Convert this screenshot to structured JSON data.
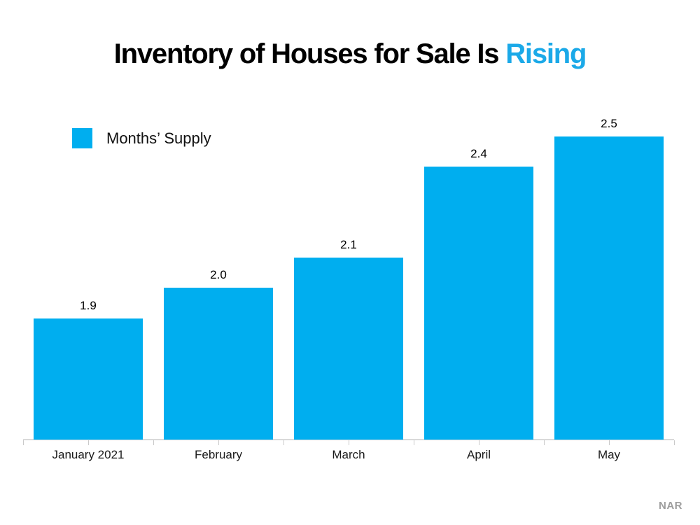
{
  "title": {
    "main": "Inventory of Houses for Sale Is ",
    "accent": "Rising"
  },
  "legend": {
    "label": "Months’ Supply"
  },
  "source": "NAR",
  "colors": {
    "bar": "#00AEEF",
    "title_accent": "#1BA9E8",
    "title_text": "#000000",
    "axis_line": "#D9D9D9",
    "tick": "#C9C9C9",
    "source_text": "#9D9D9D"
  },
  "chart_data": {
    "type": "bar",
    "title": "Inventory of Houses for Sale Is Rising",
    "series_name": "Months’ Supply",
    "categories": [
      "January 2021",
      "February",
      "March",
      "April",
      "May"
    ],
    "values": [
      1.9,
      2.0,
      2.1,
      2.4,
      2.5
    ],
    "data_labels": [
      "1.9",
      "2.0",
      "2.1",
      "2.4",
      "2.5"
    ],
    "xlabel": "",
    "ylabel": "",
    "ylim": [
      1.5,
      2.6
    ],
    "baseline": 1.5,
    "grid": false,
    "y_axis_visible": false,
    "legend_position": "top-left",
    "data_labels_shown": true,
    "source": "NAR"
  }
}
